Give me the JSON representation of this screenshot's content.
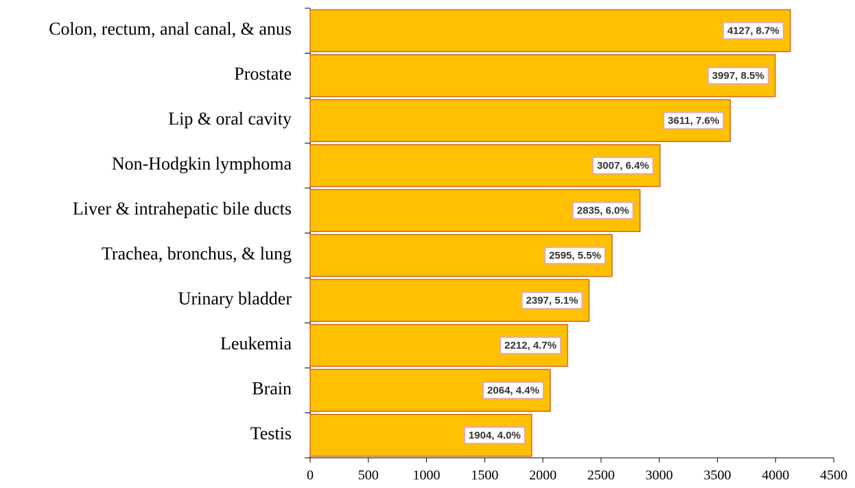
{
  "chart_data": {
    "type": "barh",
    "categories": [
      "Colon, rectum, anal canal, & anus",
      "Prostate",
      "Lip & oral cavity",
      "Non-Hodgkin lymphoma",
      "Liver & intrahepatic bile ducts",
      "Trachea, bronchus, & lung",
      "Urinary bladder",
      "Leukemia",
      "Brain",
      "Testis"
    ],
    "values": [
      4127,
      3997,
      3611,
      3007,
      2835,
      2595,
      2397,
      2212,
      2064,
      1904
    ],
    "value_labels": [
      "4127, 8.7%",
      "3997, 8.5%",
      "3611, 7.6%",
      "3007, 6.4%",
      "2835, 6.0%",
      "2595, 5.5%",
      "2397, 5.1%",
      "2212, 4.7%",
      "2064, 4.4%",
      "1904, 4.0%"
    ],
    "color": "#FFC000",
    "xlim": [
      0,
      4500
    ],
    "xticks": [
      0,
      500,
      1000,
      1500,
      2000,
      2500,
      3000,
      3500,
      4000,
      4500
    ],
    "grid": false
  }
}
